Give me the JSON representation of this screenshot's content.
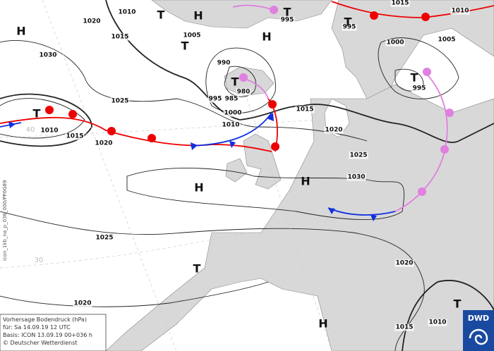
{
  "isobar_labels": [
    1010,
    1020,
    1015,
    1005,
    995,
    995,
    1015,
    1010,
    1005,
    1000,
    1030,
    990,
    980,
    995,
    985,
    995,
    1025,
    1000,
    1015,
    1010,
    1010,
    1015,
    1020,
    1020,
    1025,
    1030,
    1025,
    1020,
    1020,
    1015,
    1010
  ],
  "pressure_centers": [
    "H",
    "T",
    "H",
    "T",
    "H",
    "T",
    "T",
    "T",
    "T",
    "T",
    "H",
    "H",
    "T",
    "T",
    "H"
  ],
  "grid_labels": [
    40,
    30
  ],
  "legend": {
    "title": "Vorhersage Bodendruck (hPa)",
    "valid": "für:  Sa 14.09.19  12 UTC",
    "basis": "Basis: ICON  13.09.19 00+036 h",
    "credit": "© Deutscher Wetterdienst"
  },
  "side_text": "icon_1kb_na_p_036_000/PP0G89",
  "logo": "DWD"
}
